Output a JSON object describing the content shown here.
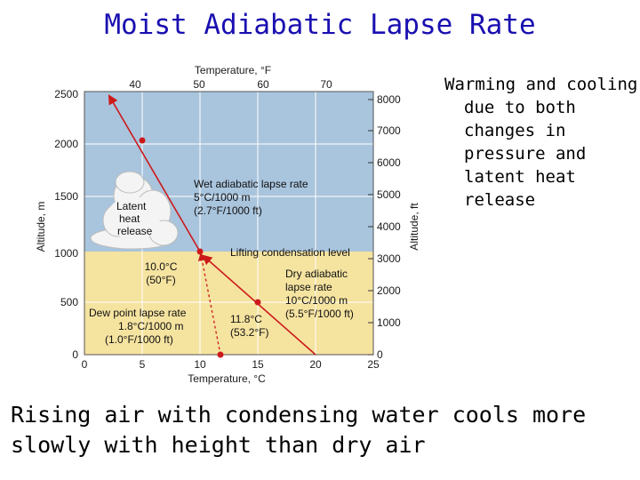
{
  "title": "Moist Adiabatic Lapse Rate",
  "side_text": "Warming and cooling due to both changes in pressure and latent heat release",
  "bottom_text": "Rising air with condensing water cools more slowly with height than dry air",
  "diagram": {
    "top_axis_label": "Temperature, °F",
    "bottom_axis_label": "Temperature, °C",
    "left_axis_label": "Altitude, m",
    "right_axis_label": "Altitude, ft",
    "top_ticks": [
      "40",
      "50",
      "60",
      "70"
    ],
    "bottom_ticks": [
      "0",
      "5",
      "10",
      "15",
      "20",
      "25"
    ],
    "left_ticks": [
      "0",
      "500",
      "1000",
      "1500",
      "2000",
      "2500"
    ],
    "right_ticks": [
      "0",
      "1000",
      "2000",
      "3000",
      "4000",
      "5000",
      "6000",
      "7000",
      "8000"
    ],
    "cloud_label": [
      "Latent",
      "heat",
      "release"
    ],
    "wet_label": [
      "Wet adiabatic lapse rate",
      "5°C/1000 m",
      "(2.7°F/1000 ft)"
    ],
    "lcl_label": "Lifting condensation level",
    "lcl_temp": [
      "10.0°C",
      "(50°F)"
    ],
    "dry_label": [
      "Dry adiabatic",
      "lapse rate",
      "10°C/1000 m",
      "(5.5°F/1000 ft)"
    ],
    "dew_label": [
      "Dew point lapse rate",
      "1.8°C/1000 m",
      "(1.0°F/1000 ft)"
    ],
    "dew_temp": [
      "11.8°C",
      "(53.2°F)"
    ],
    "colors": {
      "sky": "#a9c4dd",
      "lower": "#f5e3a0",
      "grid": "#ffffff",
      "line": "#cc1a1a"
    }
  }
}
